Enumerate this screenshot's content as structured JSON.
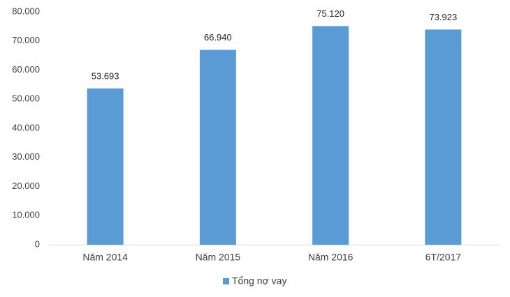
{
  "chart_data": {
    "type": "bar",
    "categories": [
      "Năm 2014",
      "Năm 2015",
      "Năm 2016",
      "6T/2017"
    ],
    "series": [
      {
        "name": "Tổng nợ vay",
        "color": "#5b9bd5",
        "values": [
          53693,
          66940,
          75120,
          73923
        ],
        "value_labels": [
          "53.693",
          "66.940",
          "75.120",
          "73.923"
        ]
      }
    ],
    "ylim": [
      0,
      80000
    ],
    "yticks": [
      0,
      {
        "value": 10000,
        "label": "10.000"
      },
      {
        "value": 20000,
        "label": "20.000"
      },
      {
        "value": 30000,
        "label": "30.000"
      },
      {
        "value": 40000,
        "label": "40.000"
      },
      {
        "value": 50000,
        "label": "50.000"
      },
      {
        "value": 60000,
        "label": "60.000"
      },
      {
        "value": 70000,
        "label": "70.000"
      },
      {
        "value": 80000,
        "label": "80.000"
      }
    ],
    "grid": false,
    "legend": "bottom"
  }
}
